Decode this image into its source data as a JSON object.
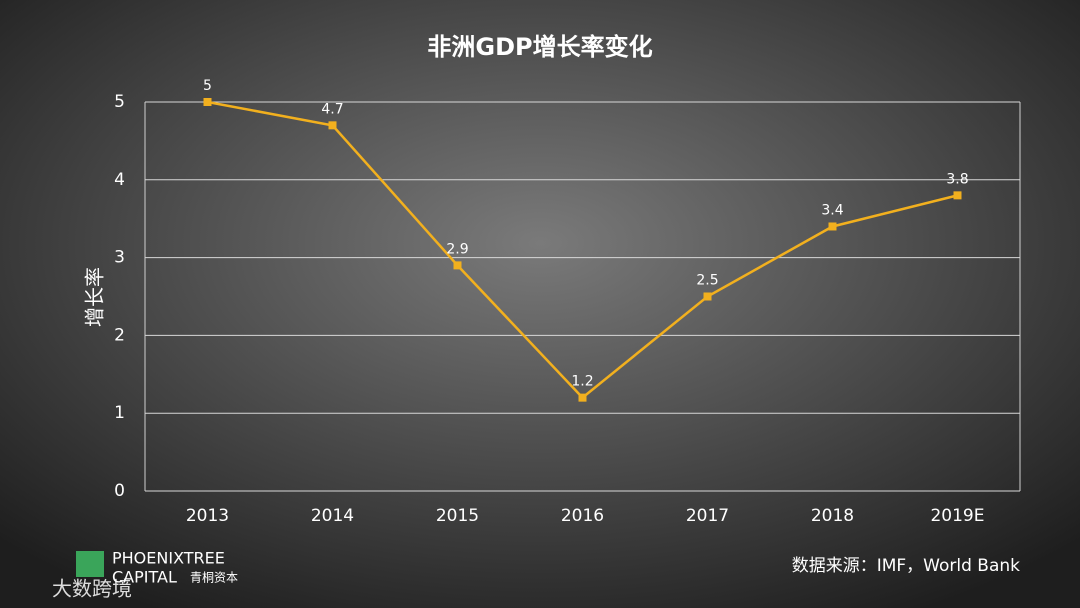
{
  "chart_data": {
    "type": "line",
    "title": "非洲GDP增长率变化",
    "y_label": "增长率",
    "categories": [
      "2013",
      "2014",
      "2015",
      "2016",
      "2017",
      "2018",
      "2019E"
    ],
    "series": [
      {
        "name": "增长率",
        "color": "#f2b01e",
        "values": [
          5,
          4.7,
          2.9,
          1.2,
          2.5,
          3.4,
          3.8
        ]
      }
    ],
    "ylim": [
      0,
      5
    ],
    "yticks": [
      0,
      1,
      2,
      3,
      4,
      5
    ],
    "grid": true,
    "data_labels": true,
    "source": "数据来源：IMF，World Bank"
  },
  "branding": {
    "logo_line1": "PHOENIXTREE",
    "logo_line2": "CAPITAL",
    "logo_cn": "青桐资本",
    "watermark": "大数跨境"
  }
}
